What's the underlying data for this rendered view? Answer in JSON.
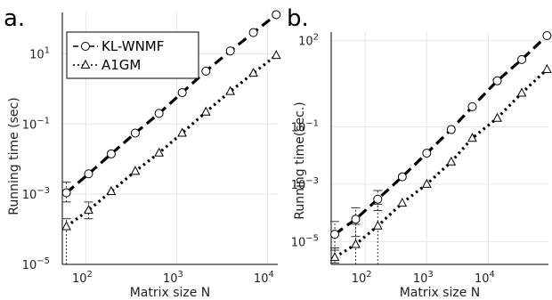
{
  "chart_data": [
    {
      "type": "line",
      "panel_label": "a.",
      "xlabel": "Matrix size N",
      "ylabel": "Running time (sec)",
      "xscale": "log",
      "yscale": "log",
      "xlim": [
        55,
        13000
      ],
      "ylim": [
        1e-05,
        150
      ],
      "xticks": [
        100,
        1000,
        10000
      ],
      "xtick_labels": [
        [
          "10",
          "2"
        ],
        [
          "10",
          "3"
        ],
        [
          "10",
          "4"
        ]
      ],
      "yticks": [
        1e-05,
        0.001,
        0.1,
        10
      ],
      "ytick_labels": [
        [
          "10",
          "−5"
        ],
        [
          "10",
          "−3"
        ],
        [
          "10",
          "−1"
        ],
        [
          "10",
          "1"
        ]
      ],
      "grid": true,
      "legend": {
        "position": "top-left",
        "entries": [
          "KL-WNMF",
          "A1GM"
        ]
      },
      "series": [
        {
          "name": "KL-WNMF",
          "style": "dashed",
          "marker": "circle",
          "x": [
            61,
            107,
            190,
            350,
            640,
            1150,
            2100,
            3900,
            7000,
            12500
          ],
          "y": [
            0.0011,
            0.0038,
            0.014,
            0.055,
            0.2,
            0.78,
            3.2,
            12,
            40,
            130
          ],
          "err_low": [
            0.0006,
            null,
            null,
            null,
            null,
            null,
            null,
            null,
            null,
            null
          ],
          "err_high": [
            0.0022,
            null,
            null,
            null,
            null,
            null,
            null,
            null,
            null,
            null
          ]
        },
        {
          "name": "A1GM",
          "style": "dotted",
          "marker": "triangle",
          "x": [
            61,
            107,
            190,
            350,
            640,
            1150,
            2100,
            3900,
            7000,
            12500
          ],
          "y": [
            0.00012,
            0.00035,
            0.0012,
            0.0045,
            0.015,
            0.055,
            0.22,
            0.85,
            2.8,
            9
          ],
          "err_low": [
            1e-05,
            0.0002,
            null,
            null,
            null,
            null,
            null,
            null,
            null,
            null
          ],
          "err_high": [
            0.0002,
            0.0006,
            null,
            null,
            null,
            null,
            null,
            null,
            null,
            null
          ]
        }
      ]
    },
    {
      "type": "line",
      "panel_label": "b.",
      "xlabel": "Matrix size N",
      "ylabel": "Running time(sec.)",
      "xscale": "log",
      "yscale": "log",
      "xlim": [
        28,
        95000
      ],
      "ylim": [
        1.6e-06,
        200
      ],
      "xticks": [
        100,
        1000,
        10000
      ],
      "xtick_labels": [
        [
          "10",
          "2"
        ],
        [
          "10",
          "3"
        ],
        [
          "10",
          "4"
        ]
      ],
      "yticks": [
        1e-05,
        0.001,
        0.1,
        100
      ],
      "ytick_labels": [
        [
          "10",
          "−5"
        ],
        [
          "10",
          "−3"
        ],
        [
          "10",
          "−1"
        ],
        [
          "10",
          "2"
        ]
      ],
      "grid": true,
      "series": [
        {
          "name": "KL-WNMF",
          "style": "dashed",
          "marker": "circle",
          "x": [
            32,
            70,
            160,
            400,
            1000,
            2500,
            5500,
            14000,
            35000,
            90000
          ],
          "y": [
            1.8e-05,
            6e-05,
            0.0003,
            0.0018,
            0.012,
            0.08,
            0.5,
            4,
            22,
            150
          ],
          "err_low": [
            5e-06,
            1.5e-05,
            0.00012,
            null,
            null,
            null,
            null,
            null,
            null,
            null
          ],
          "err_high": [
            5e-05,
            0.00015,
            0.0006,
            null,
            null,
            null,
            null,
            null,
            null,
            null
          ]
        },
        {
          "name": "A1GM",
          "style": "dotted",
          "marker": "triangle",
          "x": [
            32,
            70,
            160,
            400,
            1000,
            2500,
            5500,
            14000,
            35000,
            90000
          ],
          "y": [
            2.8e-06,
            8e-06,
            3.5e-05,
            0.00022,
            0.001,
            0.006,
            0.04,
            0.2,
            1.5,
            10
          ],
          "err_low": [
            1.8e-06,
            1.6e-06,
            1.6e-06,
            null,
            null,
            null,
            null,
            null,
            null,
            null
          ],
          "err_high": [
            6e-06,
            4e-05,
            0.0002,
            null,
            null,
            null,
            null,
            null,
            null,
            null
          ]
        }
      ]
    }
  ]
}
